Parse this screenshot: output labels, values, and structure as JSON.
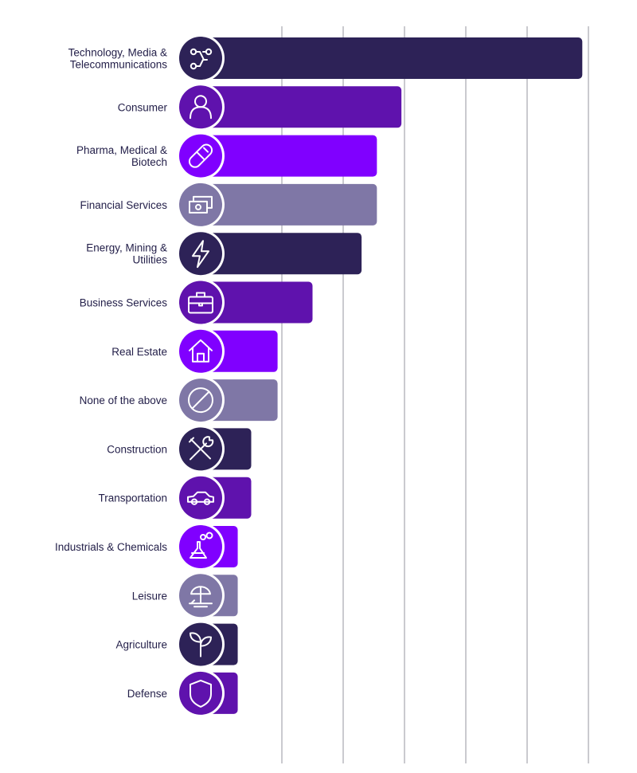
{
  "chart_data": {
    "type": "bar",
    "orientation": "horizontal",
    "title": "",
    "xlabel": "",
    "ylabel": "",
    "categories": [
      "Technology, Media & Telecommunications",
      "Consumer",
      "Pharma, Medical & Biotech",
      "Financial Services",
      "Energy, Mining & Utilities",
      "Business Services",
      "Real Estate",
      "None of the above",
      "Construction",
      "Transportation",
      "Industrials & Chemicals",
      "Leisure",
      "Agriculture",
      "Defense"
    ],
    "values": [
      59,
      29.5,
      25.5,
      25.5,
      23,
      15,
      9.3,
      9.3,
      5,
      5,
      2.8,
      2.8,
      2.8,
      2.8
    ],
    "xlim": [
      0,
      60
    ],
    "x_tick_step": 10,
    "grid": true,
    "tick_labels_visible": false,
    "legend": "none",
    "colors": [
      "#2d2257",
      "#5f12ad",
      "#8000ff",
      "#7f77a6",
      "#2d2257",
      "#5f12ad",
      "#8000ff",
      "#7f77a6",
      "#2d2257",
      "#5f12ad",
      "#8000ff",
      "#7f77a6",
      "#2d2257",
      "#5f12ad"
    ],
    "icons": [
      "network-icon",
      "person-icon",
      "pill-icon",
      "money-icon",
      "lightning-icon",
      "briefcase-icon",
      "house-icon",
      "prohibited-icon",
      "tools-icon",
      "car-icon",
      "flask-icon",
      "beach-umbrella-icon",
      "sprout-icon",
      "shield-icon"
    ]
  }
}
